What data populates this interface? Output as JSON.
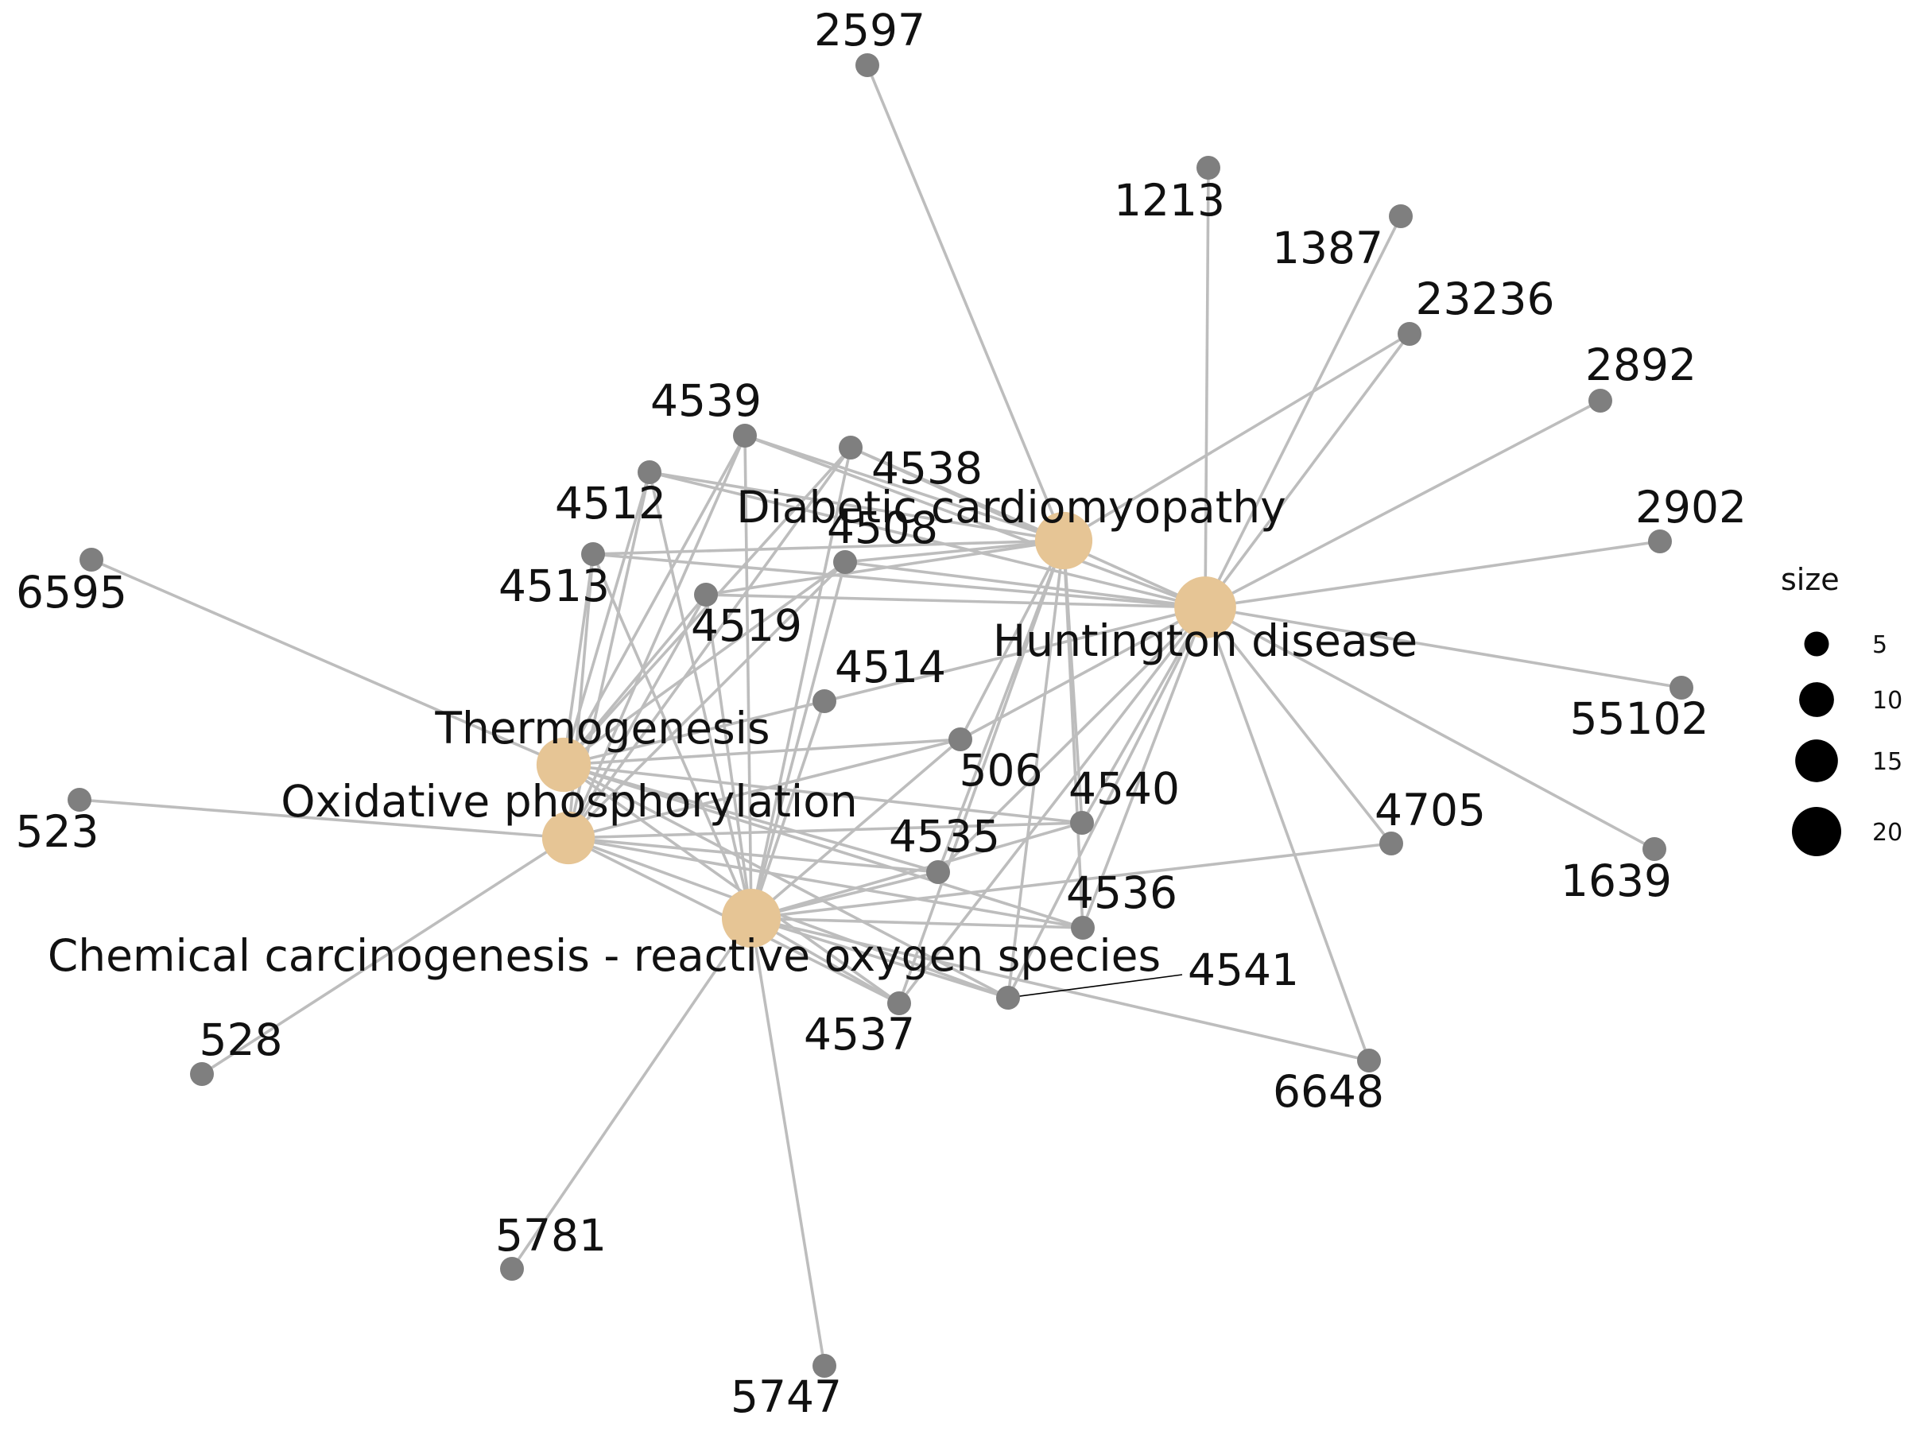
{
  "colors": {
    "category_node": "#e6c595",
    "gene_node": "#7f7f7f",
    "edge": "#bdbdbd",
    "background": "#ffffff",
    "text": "#111111"
  },
  "categories": [
    {
      "id": "DC",
      "label": "Diabetic cardiomyopathy",
      "size": 19
    },
    {
      "id": "HD",
      "label": "Huntington disease",
      "size": 22
    },
    {
      "id": "TG",
      "label": "Thermogenesis",
      "size": 17
    },
    {
      "id": "OP",
      "label": "Oxidative phosphorylation",
      "size": 16
    },
    {
      "id": "CC",
      "label": "Chemical carcinogenesis - reactive oxygen species",
      "size": 20
    }
  ],
  "genes": [
    "2597",
    "1213",
    "1387",
    "23236",
    "2892",
    "2902",
    "55102",
    "1639",
    "4705",
    "6648",
    "4541",
    "4537",
    "4536",
    "4535",
    "4540",
    "506",
    "4514",
    "4519",
    "4508",
    "4538",
    "4539",
    "4512",
    "4513",
    "6595",
    "523",
    "528",
    "5781",
    "5747"
  ],
  "edges": [
    [
      "DC",
      "2597"
    ],
    [
      "DC",
      "4539"
    ],
    [
      "DC",
      "4538"
    ],
    [
      "DC",
      "4512"
    ],
    [
      "DC",
      "4513"
    ],
    [
      "DC",
      "4508"
    ],
    [
      "DC",
      "4519"
    ],
    [
      "DC",
      "506"
    ],
    [
      "DC",
      "4540"
    ],
    [
      "DC",
      "4535"
    ],
    [
      "DC",
      "4536"
    ],
    [
      "DC",
      "4537"
    ],
    [
      "DC",
      "4541"
    ],
    [
      "DC",
      "23236"
    ],
    [
      "HD",
      "1213"
    ],
    [
      "HD",
      "1387"
    ],
    [
      "HD",
      "23236"
    ],
    [
      "HD",
      "2892"
    ],
    [
      "HD",
      "2902"
    ],
    [
      "HD",
      "55102"
    ],
    [
      "HD",
      "1639"
    ],
    [
      "HD",
      "4705"
    ],
    [
      "HD",
      "6648"
    ],
    [
      "HD",
      "4539"
    ],
    [
      "HD",
      "4538"
    ],
    [
      "HD",
      "4512"
    ],
    [
      "HD",
      "4513"
    ],
    [
      "HD",
      "4508"
    ],
    [
      "HD",
      "4519"
    ],
    [
      "HD",
      "4514"
    ],
    [
      "HD",
      "506"
    ],
    [
      "HD",
      "4540"
    ],
    [
      "HD",
      "4535"
    ],
    [
      "HD",
      "4536"
    ],
    [
      "HD",
      "4537"
    ],
    [
      "HD",
      "4541"
    ],
    [
      "TG",
      "6595"
    ],
    [
      "TG",
      "4539"
    ],
    [
      "TG",
      "4538"
    ],
    [
      "TG",
      "4512"
    ],
    [
      "TG",
      "4513"
    ],
    [
      "TG",
      "4508"
    ],
    [
      "TG",
      "4519"
    ],
    [
      "TG",
      "4514"
    ],
    [
      "TG",
      "506"
    ],
    [
      "TG",
      "4540"
    ],
    [
      "TG",
      "4535"
    ],
    [
      "TG",
      "4536"
    ],
    [
      "TG",
      "4537"
    ],
    [
      "TG",
      "4541"
    ],
    [
      "OP",
      "523"
    ],
    [
      "OP",
      "528"
    ],
    [
      "OP",
      "4539"
    ],
    [
      "OP",
      "4538"
    ],
    [
      "OP",
      "4512"
    ],
    [
      "OP",
      "4513"
    ],
    [
      "OP",
      "4508"
    ],
    [
      "OP",
      "4519"
    ],
    [
      "OP",
      "4540"
    ],
    [
      "OP",
      "4535"
    ],
    [
      "OP",
      "4536"
    ],
    [
      "OP",
      "4537"
    ],
    [
      "OP",
      "4541"
    ],
    [
      "OP",
      "506"
    ],
    [
      "CC",
      "5781"
    ],
    [
      "CC",
      "5747"
    ],
    [
      "CC",
      "4705"
    ],
    [
      "CC",
      "6648"
    ],
    [
      "CC",
      "4539"
    ],
    [
      "CC",
      "4538"
    ],
    [
      "CC",
      "4512"
    ],
    [
      "CC",
      "4513"
    ],
    [
      "CC",
      "4508"
    ],
    [
      "CC",
      "4519"
    ],
    [
      "CC",
      "4514"
    ],
    [
      "CC",
      "506"
    ],
    [
      "CC",
      "4540"
    ],
    [
      "CC",
      "4535"
    ],
    [
      "CC",
      "4536"
    ],
    [
      "CC",
      "4537"
    ],
    [
      "CC",
      "4541"
    ]
  ],
  "legend": {
    "title": "size",
    "items": [
      {
        "label": "5",
        "size": 5
      },
      {
        "label": "10",
        "size": 10
      },
      {
        "label": "15",
        "size": 15
      },
      {
        "label": "20",
        "size": 20
      }
    ]
  }
}
